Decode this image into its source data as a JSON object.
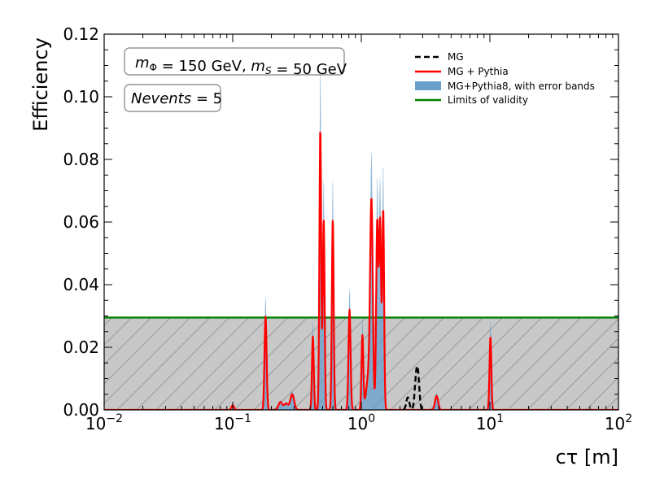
{
  "chart_data": {
    "type": "line",
    "title": "",
    "xlabel": "cτ [m]",
    "ylabel": "Efficiency",
    "xscale": "log",
    "xlim": [
      0.01,
      100
    ],
    "ylim": [
      0,
      0.12
    ],
    "x_ticks": [
      0.01,
      0.1,
      1,
      10,
      100
    ],
    "x_tick_labels": [
      {
        "base": "10",
        "exp": "−2"
      },
      {
        "base": "10",
        "exp": "−1"
      },
      {
        "base": "10",
        "exp": "0"
      },
      {
        "base": "10",
        "exp": "1"
      },
      {
        "base": "10",
        "exp": "2"
      }
    ],
    "y_ticks": [
      0,
      0.02,
      0.04,
      0.06,
      0.08,
      0.1,
      0.12
    ],
    "y_tick_labels": [
      "0.00",
      "0.02",
      "0.04",
      "0.06",
      "0.08",
      "0.10",
      "0.12"
    ],
    "grid": false,
    "legend_position": "top-right",
    "annotations": [
      {
        "id": "mass",
        "parts": [
          {
            "t": "m",
            "i": true
          },
          {
            "t": "Φ",
            "sub": true
          },
          {
            "t": " = 150 GeV, "
          },
          {
            "t": "m",
            "i": true
          },
          {
            "t": "S",
            "sub": true,
            "i": true
          },
          {
            "t": " = 50 GeV"
          }
        ]
      },
      {
        "id": "nevents",
        "parts": [
          {
            "t": "Nevents",
            "i": true
          },
          {
            "t": " = 5"
          }
        ]
      }
    ],
    "limit_of_validity": 0.0295,
    "series": [
      {
        "name": "MG",
        "style": "dashed",
        "color": "#000000",
        "peaks": [
          {
            "x": 2.3,
            "y": 0.004,
            "w": 0.012
          },
          {
            "x": 2.68,
            "y": 0.011,
            "w": 0.012
          },
          {
            "x": 2.78,
            "y": 0.007,
            "w": 0.01
          }
        ]
      },
      {
        "name": "MG + Pythia",
        "style": "solid",
        "color": "#ff0000",
        "peaks": [
          {
            "x": 0.1,
            "y": 0.0015,
            "w": 0.01
          },
          {
            "x": 0.18,
            "y": 0.03,
            "w": 0.008
          },
          {
            "x": 0.235,
            "y": 0.0025,
            "w": 0.015
          },
          {
            "x": 0.26,
            "y": 0.002,
            "w": 0.015
          },
          {
            "x": 0.29,
            "y": 0.005,
            "w": 0.015
          },
          {
            "x": 0.42,
            "y": 0.0235,
            "w": 0.007
          },
          {
            "x": 0.48,
            "y": 0.09,
            "w": 0.007
          },
          {
            "x": 0.51,
            "y": 0.061,
            "w": 0.007
          },
          {
            "x": 0.6,
            "y": 0.061,
            "w": 0.007
          },
          {
            "x": 0.81,
            "y": 0.032,
            "w": 0.008
          },
          {
            "x": 1.02,
            "y": 0.0235,
            "w": 0.007
          },
          {
            "x": 1.15,
            "y": 0.012,
            "w": 0.02
          },
          {
            "x": 1.2,
            "y": 0.06,
            "w": 0.01
          },
          {
            "x": 1.33,
            "y": 0.06,
            "w": 0.008
          },
          {
            "x": 1.4,
            "y": 0.06,
            "w": 0.008
          },
          {
            "x": 1.48,
            "y": 0.064,
            "w": 0.007
          },
          {
            "x": 3.85,
            "y": 0.0045,
            "w": 0.012
          },
          {
            "x": 10.1,
            "y": 0.0235,
            "w": 0.007
          }
        ]
      },
      {
        "name": "MG+Pythia8, with error bands",
        "style": "band",
        "color": "#6a9fcc",
        "band_scale": 1.22
      },
      {
        "name": "Limits of validity",
        "style": "solid",
        "color": "#008000"
      }
    ]
  }
}
